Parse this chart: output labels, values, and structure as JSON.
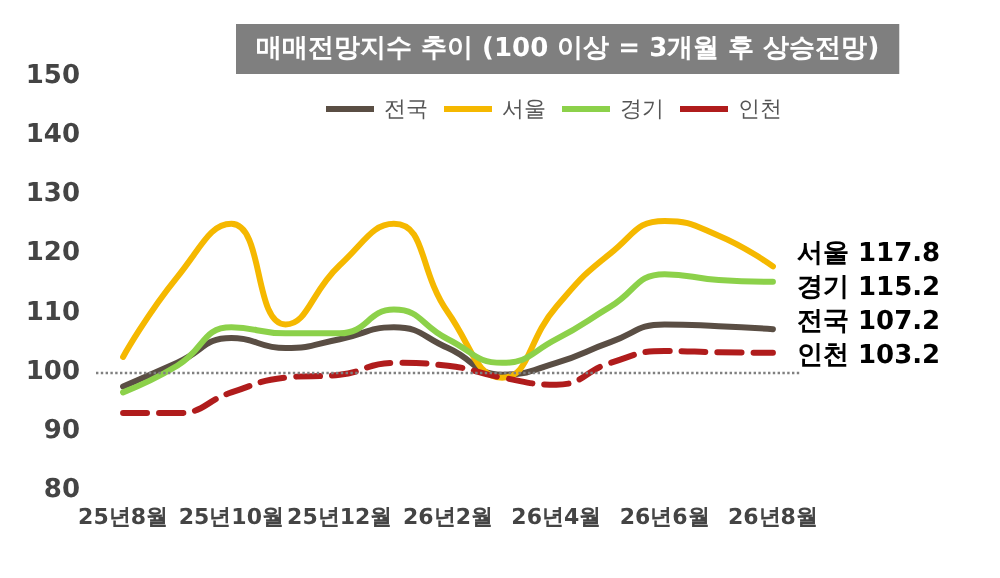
{
  "chart_data": {
    "type": "line",
    "title": "매매전망지수 추이 (100 이상 = 3개월 후 상승전망)",
    "categories": [
      "25년8월",
      null,
      "25년10월",
      null,
      "25년12월",
      null,
      "26년2월",
      null,
      "26년4월",
      null,
      "26년6월",
      null,
      "26년8월"
    ],
    "series": [
      {
        "name": "전국",
        "color": "#5a4e44",
        "line_style": "solid",
        "values": [
          97.5,
          101.5,
          105.7,
          104,
          105.5,
          107.5,
          104,
          99.5,
          101.5,
          105,
          108,
          107.7,
          107.2
        ],
        "value_labels": [
          null,
          null,
          null,
          null,
          null,
          null,
          null,
          null,
          null,
          null,
          null,
          null,
          "107.2"
        ]
      },
      {
        "name": "서울",
        "color": "#f5b800",
        "line_style": "solid",
        "values": [
          102.5,
          116,
          125,
          108,
          118,
          125,
          110,
          99,
          111,
          120,
          125.5,
          123,
          117.8
        ],
        "value_labels": [
          null,
          null,
          null,
          null,
          null,
          null,
          null,
          null,
          null,
          null,
          null,
          null,
          "117.8"
        ]
      },
      {
        "name": "경기",
        "color": "#8cd14a",
        "line_style": "solid",
        "values": [
          96.5,
          101,
          107.5,
          106.5,
          106.5,
          110.5,
          105.5,
          101.5,
          105.5,
          111,
          116.5,
          115.5,
          115.2
        ],
        "value_labels": [
          null,
          null,
          null,
          null,
          null,
          null,
          null,
          null,
          null,
          null,
          null,
          null,
          "115.2"
        ]
      },
      {
        "name": "인천",
        "color": "#b01c1c",
        "line_style": "dashed",
        "values": [
          93,
          93,
          96.5,
          99,
          99.5,
          101.5,
          101,
          99,
          97.8,
          101.5,
          103.5,
          103.3,
          103.2
        ],
        "value_labels": [
          null,
          null,
          null,
          null,
          null,
          null,
          null,
          null,
          null,
          null,
          null,
          null,
          "103.2"
        ]
      }
    ],
    "ylim": [
      80,
      150
    ],
    "yticks": [
      80,
      90,
      100,
      110,
      120,
      130,
      140,
      150
    ],
    "grid": false,
    "legend": "top",
    "marker": "none",
    "ref_lines": [
      {
        "axis": "y",
        "value": 100,
        "color": "#808080",
        "line_style": "dotted"
      }
    ]
  }
}
